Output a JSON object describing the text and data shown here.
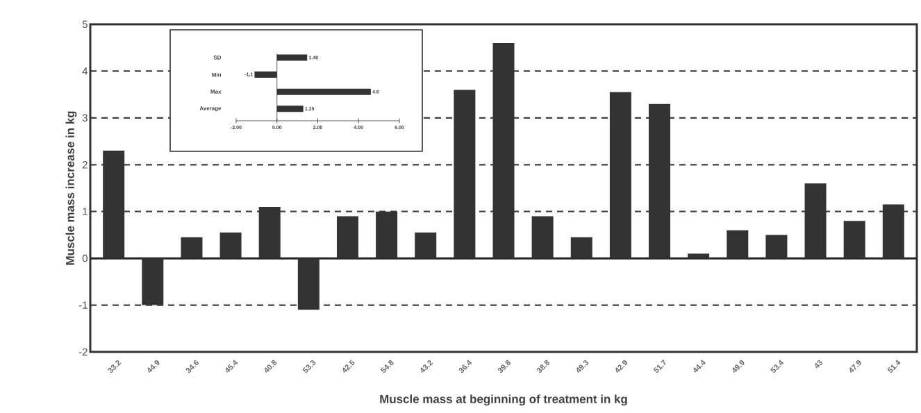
{
  "chart_data": [
    {
      "type": "bar",
      "xlabel": "Muscle mass at beginning of treatment in kg",
      "ylabel": "Muscle mass increase in kg",
      "categories": [
        "33.2",
        "44.9",
        "34.6",
        "45.4",
        "40.8",
        "53.3",
        "42.5",
        "54.8",
        "43.2",
        "36.4",
        "39.8",
        "38.8",
        "49.3",
        "42.9",
        "51.7",
        "44.4",
        "49.9",
        "53.4",
        "43",
        "47.9",
        "51.4"
      ],
      "values": [
        2.3,
        -1.0,
        0.45,
        0.55,
        1.1,
        -1.1,
        0.9,
        1.0,
        0.55,
        3.6,
        4.6,
        0.9,
        0.45,
        3.55,
        3.3,
        0.1,
        0.6,
        0.5,
        1.6,
        0.8,
        1.15
      ],
      "color": "#333333",
      "ylim": [
        -2,
        5
      ],
      "yticks": [
        -2,
        -1,
        0,
        1,
        2,
        3,
        4,
        5
      ],
      "grid": "y",
      "line_style": "dashed",
      "ref_lines": [
        {
          "axis": "y",
          "value": 0,
          "line_style": "solid"
        }
      ]
    },
    {
      "type": "bar",
      "orientation": "horizontal",
      "categories": [
        "SD",
        "Min",
        "Max",
        "Average"
      ],
      "values": [
        1.48,
        -1.1,
        4.6,
        1.29
      ],
      "value_labels": [
        "1.48",
        "-1,1",
        "4.6",
        "1.29"
      ],
      "color": "#333333",
      "xlim": [
        -2,
        6
      ],
      "xticks": [
        {
          "value": -2,
          "label": "-2.00"
        },
        {
          "value": 0,
          "label": "0.00"
        },
        {
          "value": 2,
          "label": "2.00"
        },
        {
          "value": 4,
          "label": "4.00"
        },
        {
          "value": 6,
          "label": "6.00"
        }
      ]
    }
  ]
}
